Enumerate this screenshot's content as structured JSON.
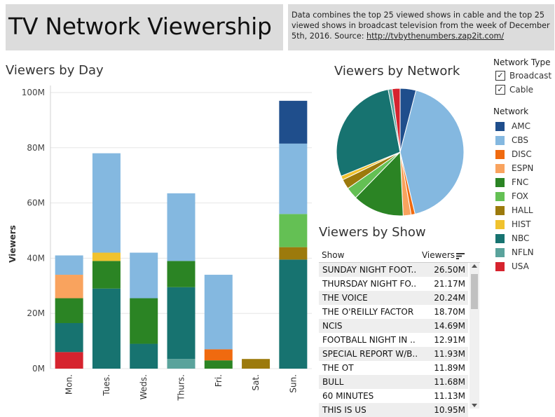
{
  "header": {
    "title": "TV Network Viewership",
    "description": "Data combines the top 25 viewed shows in cable and the top 25 viewed shows in broadcast television from the week of December 5th, 2016. Source: ",
    "source_link": "http://tvbythenumbers.zap2it.com/"
  },
  "colors": {
    "AMC": "#1f4e8c",
    "CBS": "#84b8e0",
    "DISC": "#f06a0f",
    "ESPN": "#f9a35e",
    "FNC": "#2b8424",
    "FOX": "#64c054",
    "HALL": "#9c7a0c",
    "HIST": "#f0c22e",
    "NBC": "#177370",
    "NFLN": "#5aa39c",
    "USA": "#d6232e"
  },
  "chart_data": [
    {
      "type": "bar",
      "stacked": true,
      "title": "Viewers by Day",
      "ylabel": "Viewers",
      "ylim": [
        0,
        100
      ],
      "yticks": [
        "0M",
        "20M",
        "40M",
        "60M",
        "80M",
        "100M"
      ],
      "categories": [
        "Mon.",
        "Tues.",
        "Weds.",
        "Thurs.",
        "Fri.",
        "Sat.",
        "Sun."
      ],
      "series": [
        {
          "name": "USA",
          "values": [
            6,
            0,
            0,
            0,
            0,
            0,
            0
          ]
        },
        {
          "name": "NFLN",
          "values": [
            0,
            0,
            0,
            3.5,
            0,
            0,
            0
          ]
        },
        {
          "name": "NBC",
          "values": [
            10.5,
            29,
            9,
            26,
            0,
            0,
            39.5
          ]
        },
        {
          "name": "FNC",
          "values": [
            9,
            10,
            16.5,
            9.5,
            3,
            0,
            0
          ]
        },
        {
          "name": "HALL",
          "values": [
            0,
            0,
            0,
            0,
            0,
            3.5,
            4.5
          ]
        },
        {
          "name": "HIST",
          "values": [
            0,
            3,
            0,
            0,
            0,
            0,
            0
          ]
        },
        {
          "name": "FOX",
          "values": [
            0,
            0,
            0,
            0,
            0,
            0,
            12
          ]
        },
        {
          "name": "DISC",
          "values": [
            0,
            0,
            0,
            0,
            4,
            0,
            0
          ]
        },
        {
          "name": "ESPN",
          "values": [
            8.5,
            0,
            0,
            0,
            0,
            0,
            0
          ]
        },
        {
          "name": "CBS",
          "values": [
            7,
            36,
            16.5,
            24.5,
            27,
            0,
            25.5
          ]
        },
        {
          "name": "AMC",
          "values": [
            0,
            0,
            0,
            0,
            0,
            0,
            15.5
          ]
        }
      ]
    },
    {
      "type": "pie",
      "title": "Viewers by Network",
      "slices": [
        {
          "name": "AMC",
          "value": 4
        },
        {
          "name": "CBS",
          "value": 42
        },
        {
          "name": "DISC",
          "value": 1
        },
        {
          "name": "ESPN",
          "value": 2
        },
        {
          "name": "FNC",
          "value": 13
        },
        {
          "name": "FOX",
          "value": 3
        },
        {
          "name": "HALL",
          "value": 2.5
        },
        {
          "name": "HIST",
          "value": 1
        },
        {
          "name": "NBC",
          "value": 28
        },
        {
          "name": "NFLN",
          "value": 1
        },
        {
          "name": "USA",
          "value": 2
        }
      ]
    },
    {
      "type": "table",
      "title": "Viewers by Show",
      "columns": [
        "Show",
        "Viewers"
      ],
      "rows": [
        [
          "SUNDAY NIGHT FOOT..",
          "26.50M"
        ],
        [
          "THURSDAY NIGHT FO..",
          "21.17M"
        ],
        [
          "THE VOICE",
          "20.24M"
        ],
        [
          "THE O'REILLY FACTOR",
          "18.70M"
        ],
        [
          "NCIS",
          "14.69M"
        ],
        [
          "FOOTBALL NIGHT IN ..",
          "12.91M"
        ],
        [
          "SPECIAL REPORT W/B..",
          "11.93M"
        ],
        [
          "THE OT",
          "11.89M"
        ],
        [
          "BULL",
          "11.68M"
        ],
        [
          "60 MINUTES",
          "11.13M"
        ],
        [
          "THIS IS US",
          "10.95M"
        ]
      ]
    }
  ],
  "filters": {
    "network_type_label": "Network Type",
    "options": [
      {
        "label": "Broadcast",
        "checked": true
      },
      {
        "label": "Cable",
        "checked": true
      }
    ]
  },
  "legend": {
    "label": "Network",
    "items": [
      "AMC",
      "CBS",
      "DISC",
      "ESPN",
      "FNC",
      "FOX",
      "HALL",
      "HIST",
      "NBC",
      "NFLN",
      "USA"
    ]
  }
}
